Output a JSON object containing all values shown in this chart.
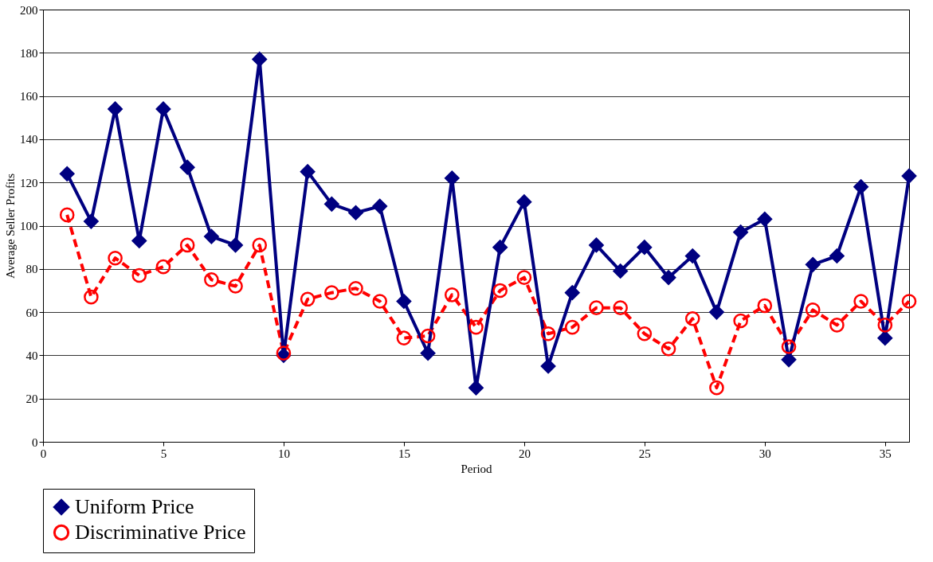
{
  "chart_data": {
    "type": "line",
    "xlabel": "Period",
    "ylabel": "Average Seller Profits",
    "x": [
      1,
      2,
      3,
      4,
      5,
      6,
      7,
      8,
      9,
      10,
      11,
      12,
      13,
      14,
      15,
      16,
      17,
      18,
      19,
      20,
      21,
      22,
      23,
      24,
      25,
      26,
      27,
      28,
      29,
      30,
      31,
      32,
      33,
      34,
      35,
      36
    ],
    "xlim": [
      0,
      36
    ],
    "xticks": [
      0,
      5,
      10,
      15,
      20,
      25,
      30,
      35
    ],
    "ylim": [
      0,
      200
    ],
    "yticks": [
      0,
      20,
      40,
      60,
      80,
      100,
      120,
      140,
      160,
      180,
      200
    ],
    "grid": "y",
    "legend": "bottom",
    "series": [
      {
        "name": "Uniform Price",
        "color": "#000080",
        "marker": "diamond",
        "line_style": "solid",
        "values": [
          124,
          102,
          154,
          93,
          154,
          127,
          95,
          91,
          177,
          40,
          125,
          110,
          106,
          109,
          65,
          41,
          122,
          25,
          90,
          111,
          35,
          69,
          91,
          79,
          90,
          76,
          86,
          60,
          97,
          103,
          38,
          82,
          86,
          118,
          48,
          123
        ]
      },
      {
        "name": "Discriminative Price",
        "color": "#ff0000",
        "marker": "circle",
        "line_style": "dashed",
        "values": [
          105,
          67,
          85,
          77,
          81,
          91,
          75,
          72,
          91,
          41,
          66,
          69,
          71,
          65,
          48,
          49,
          68,
          53,
          70,
          76,
          50,
          53,
          62,
          62,
          50,
          43,
          57,
          25,
          56,
          63,
          44,
          61,
          54,
          65,
          54,
          65
        ]
      }
    ]
  }
}
